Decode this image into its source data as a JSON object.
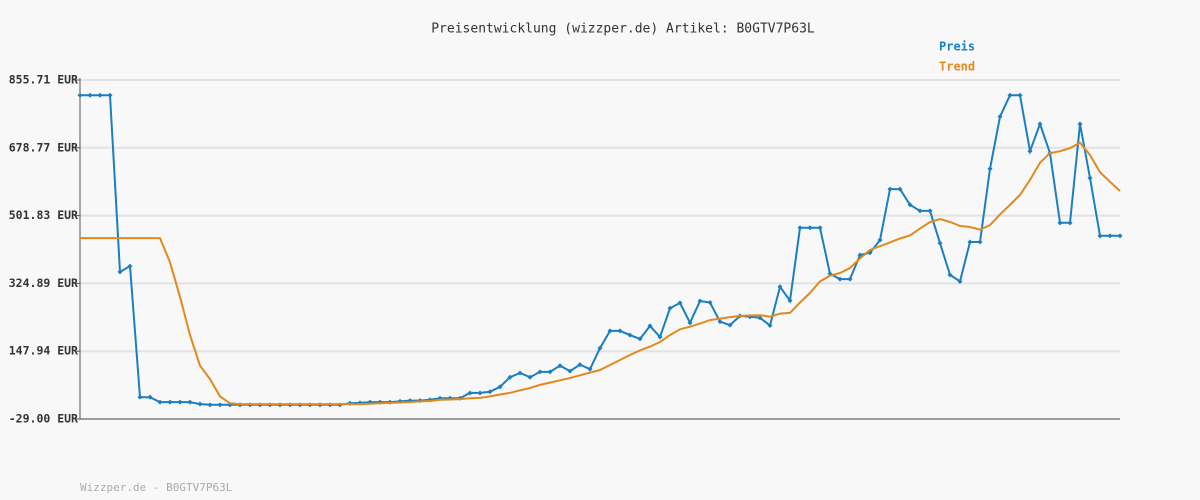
{
  "chart_data": {
    "type": "line",
    "title": "Preisentwicklung (wizzper.de) Artikel: B0GTV7P63L",
    "footer": "Wizzper.de - B0GTV7P63L",
    "categories": [
      null,
      null,
      null,
      null,
      null,
      null,
      null,
      null,
      null,
      null,
      null,
      null,
      null,
      null,
      null,
      null,
      null,
      null,
      null,
      null,
      null,
      null,
      null,
      null,
      null,
      null,
      null,
      null,
      null,
      null,
      null,
      null,
      null,
      null,
      null,
      null,
      null,
      null,
      null,
      null,
      null,
      null,
      null,
      null,
      null,
      null,
      null,
      null,
      null,
      null,
      null,
      null,
      null,
      null,
      null,
      null,
      null,
      null,
      null,
      null,
      null,
      null,
      null,
      null,
      null,
      null,
      null,
      null,
      null,
      null,
      null,
      null,
      null,
      null,
      null,
      null,
      null,
      null,
      null,
      null,
      null,
      null,
      null,
      null,
      null,
      null,
      null,
      null,
      null,
      null,
      null,
      null,
      null,
      null,
      null,
      null,
      null,
      null,
      null,
      null,
      null,
      null,
      null,
      null,
      null
    ],
    "series": [
      {
        "name": "Preis",
        "color": "#1a7fbf",
        "markers": true,
        "values": [
          816,
          816,
          816,
          816,
          355,
          370,
          28,
          28,
          15,
          15,
          15,
          15,
          10,
          8,
          8,
          8,
          8,
          8,
          8,
          8,
          8,
          8,
          8,
          8,
          8,
          8,
          8,
          12,
          13,
          15,
          15,
          15,
          17,
          19,
          19,
          21,
          25,
          25,
          25,
          39,
          39,
          42,
          55,
          80,
          91,
          80,
          94,
          94,
          110,
          96,
          113,
          101,
          156,
          201,
          201,
          190,
          180,
          214,
          185,
          260,
          274,
          222,
          279,
          275,
          225,
          216,
          240,
          238,
          235,
          215,
          316,
          280,
          470,
          470,
          470,
          350,
          336,
          336,
          399,
          405,
          438,
          571,
          571,
          530,
          514,
          514,
          430,
          347,
          330,
          433,
          433,
          624,
          760,
          816,
          816,
          670,
          741,
          665,
          483,
          483,
          741,
          600,
          449,
          449,
          449
        ]
      },
      {
        "name": "Trend",
        "color": "#e08a1e",
        "markers": false,
        "values": [
          443,
          443,
          443,
          443,
          443,
          443,
          443,
          443,
          443,
          380,
          290,
          190,
          110,
          75,
          30,
          12,
          10,
          10,
          10,
          10,
          10,
          10,
          10,
          10,
          10,
          10,
          10,
          10,
          10,
          11,
          12,
          13,
          14,
          15,
          17,
          18,
          21,
          22,
          23,
          25,
          26,
          30,
          35,
          39,
          46,
          52,
          60,
          66,
          72,
          78,
          85,
          92,
          99,
          112,
          125,
          138,
          150,
          160,
          172,
          190,
          205,
          212,
          220,
          229,
          233,
          237,
          240,
          241,
          242,
          238,
          246,
          248,
          275,
          300,
          330,
          345,
          352,
          365,
          390,
          412,
          422,
          432,
          442,
          450,
          468,
          485,
          493,
          485,
          475,
          472,
          465,
          477,
          505,
          530,
          556,
          595,
          640,
          665,
          670,
          678,
          692,
          660,
          615,
          590,
          566
        ]
      }
    ],
    "ylim": [
      -29,
      855.71
    ],
    "yticks": [
      {
        "value": -29,
        "label": "-29.00 EUR"
      },
      {
        "value": 147.94,
        "label": "147.94 EUR"
      },
      {
        "value": 324.89,
        "label": "324.89 EUR"
      },
      {
        "value": 501.83,
        "label": "501.83 EUR"
      },
      {
        "value": 678.77,
        "label": "678.77 EUR"
      },
      {
        "value": 855.71,
        "label": "855.71 EUR"
      }
    ],
    "grid": true
  }
}
